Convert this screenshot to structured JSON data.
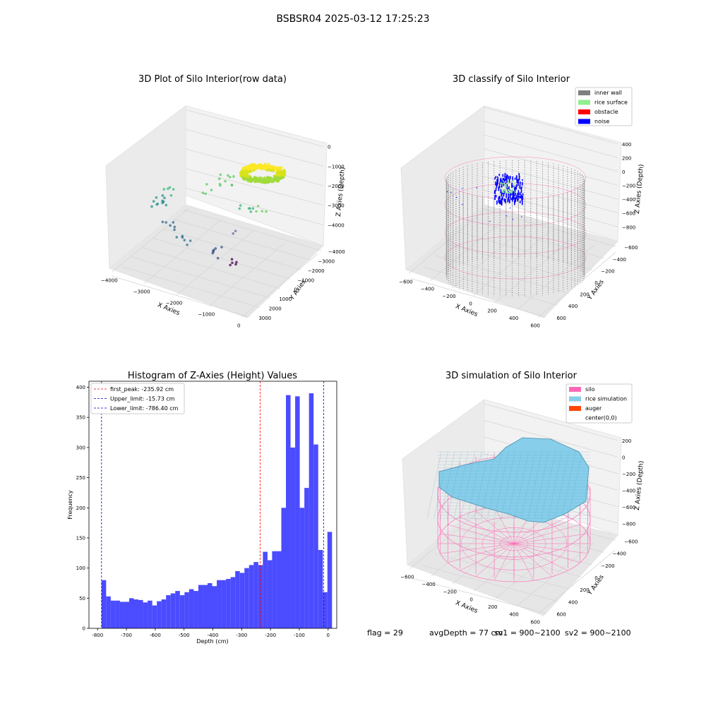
{
  "suptitle": "BSBSR04 2025-03-12 17:25:23",
  "footer": {
    "flag": "flag = 29",
    "avg": "avgDepth = 77 cm",
    "sv1": "sv1 = 900~2100",
    "sv2": "sv2 = 900~2100"
  },
  "colors": {
    "pane": "#f2f2f2",
    "grid": "#dcdcdc",
    "hist_bar": "#4b4bff",
    "peak_line": "#ff0000",
    "limit_line": "#0000cc",
    "inner_wall": "#808080",
    "rice_surface": "#90ee90",
    "obstacle": "#ff0000",
    "noise": "#0000ff",
    "silo": "#ff69b4",
    "rice_sim": "#87ceeb",
    "auger": "#ff4500"
  },
  "chart_data": [
    {
      "type": "scatter",
      "subtype": "3d",
      "title": "3D Plot of Silo Interior(row data)",
      "xlabel": "X Axies",
      "ylabel": "Y Axies",
      "zlabel": "Z Axies (Depth)",
      "xticks": [
        "−4000",
        "−3000",
        "−2000",
        "−1000",
        "0"
      ],
      "yticks": [
        "3000",
        "2000",
        "1000",
        "0",
        "−1000",
        "−2000",
        "−3000",
        "−4000"
      ],
      "zticks": [
        "0",
        "−1000",
        "−2000",
        "−3000",
        "−4000"
      ],
      "colormap": "viridis"
    },
    {
      "type": "scatter",
      "subtype": "3d",
      "title": "3D classify of Silo Interior",
      "xlabel": "X Axies",
      "ylabel": "Y Axies",
      "zlabel": "Z Axies (Depth)",
      "xticks": [
        "−600",
        "−400",
        "−200",
        "0",
        "200",
        "400",
        "600"
      ],
      "yticks": [
        "600",
        "400",
        "200",
        "0",
        "−200",
        "−400",
        "−600"
      ],
      "zticks": [
        "400",
        "200",
        "0",
        "−200",
        "−400",
        "−600",
        "−800"
      ],
      "legend": [
        "inner wall",
        "rice surface",
        "obstacle",
        "noise"
      ],
      "legend_location": "upper-right"
    },
    {
      "type": "bar",
      "subtype": "histogram",
      "title": "Histogram of Z-Axies (Height) Values",
      "xlabel": "Depth (cm)",
      "ylabel": "Frequency",
      "bin_start": -786.4,
      "bin_width": 16.0,
      "values": [
        80,
        53,
        46,
        46,
        44,
        44,
        50,
        48,
        47,
        43,
        46,
        38,
        45,
        48,
        55,
        58,
        62,
        55,
        60,
        65,
        62,
        72,
        72,
        75,
        70,
        80,
        80,
        82,
        85,
        95,
        92,
        100,
        105,
        110,
        105,
        127,
        113,
        128,
        128,
        200,
        387,
        300,
        385,
        200,
        233,
        390,
        305,
        130,
        60,
        160
      ],
      "xlim": [
        -830,
        30
      ],
      "ylim": [
        0,
        410
      ],
      "xticks": [
        -800,
        -700,
        -600,
        -500,
        -400,
        -300,
        -200,
        -100,
        0
      ],
      "yticks": [
        0,
        50,
        100,
        150,
        200,
        250,
        300,
        350,
        400
      ],
      "lines": [
        {
          "label": "first_peak: -235.92 cm",
          "x": -235.92,
          "role": "peak"
        },
        {
          "label": "Upper_limit: -15.73 cm",
          "x": -15.73,
          "role": "limit"
        },
        {
          "label": "Lower_limit: -786.40 cm",
          "x": -786.4,
          "role": "limit"
        }
      ],
      "legend_location": "upper-left"
    },
    {
      "type": "area",
      "subtype": "3d-surface",
      "title": "3D simulation of Silo Interior",
      "xlabel": "X Axies",
      "ylabel": "Y Axies",
      "zlabel": "Z Axies (Depth)",
      "xticks": [
        "−600",
        "−400",
        "−200",
        "0",
        "200",
        "400",
        "600"
      ],
      "yticks": [
        "600",
        "400",
        "200",
        "0",
        "−200",
        "−400",
        "−600"
      ],
      "zticks": [
        "200",
        "0",
        "−200",
        "−400",
        "−600",
        "−800"
      ],
      "legend": [
        "silo",
        "rice simulation",
        "auger",
        "center(0,0)"
      ],
      "legend_location": "upper-right"
    }
  ]
}
